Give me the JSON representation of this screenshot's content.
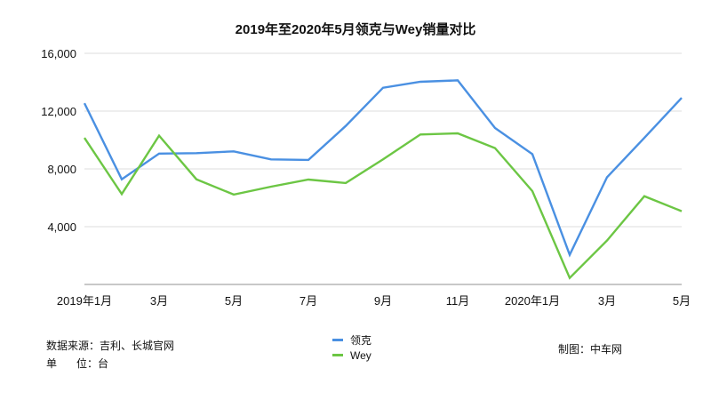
{
  "chart_data": {
    "type": "line",
    "title": "2019年至2020年5月领克与Wey销量对比",
    "xlabel": "",
    "ylabel": "",
    "ylim": [
      0,
      16000
    ],
    "yticks": [
      4000,
      8000,
      12000,
      16000
    ],
    "ytick_labels": [
      "4,000",
      "8,000",
      "12,000",
      "16,000"
    ],
    "grid": true,
    "legend_position": "bottom-center",
    "x": [
      "2019-01",
      "2019-02",
      "2019-03",
      "2019-04",
      "2019-05",
      "2019-06",
      "2019-07",
      "2019-08",
      "2019-09",
      "2019-10",
      "2019-11",
      "2019-12",
      "2020-01",
      "2020-02",
      "2020-03",
      "2020-04",
      "2020-05"
    ],
    "xtick_labels": [
      {
        "index": 0,
        "label": "2019年1月"
      },
      {
        "index": 2,
        "label": "3月"
      },
      {
        "index": 4,
        "label": "5月"
      },
      {
        "index": 6,
        "label": "7月"
      },
      {
        "index": 8,
        "label": "9月"
      },
      {
        "index": 10,
        "label": "11月"
      },
      {
        "index": 12,
        "label": "2020年1月"
      },
      {
        "index": 14,
        "label": "3月"
      },
      {
        "index": 16,
        "label": "5月"
      }
    ],
    "series": [
      {
        "name": "领克",
        "color": "#4a90e2",
        "values": [
          12550,
          7280,
          9060,
          9090,
          9210,
          8660,
          8620,
          10970,
          13620,
          14030,
          14130,
          10830,
          9020,
          2050,
          7420,
          10150,
          12920
        ]
      },
      {
        "name": "Wey",
        "color": "#6cc644",
        "values": [
          10150,
          6260,
          10300,
          7280,
          6220,
          6770,
          7260,
          7020,
          8660,
          10380,
          10460,
          9440,
          6460,
          450,
          3040,
          6110,
          5070
        ]
      }
    ]
  },
  "title": "2019年至2020年5月领克与Wey销量对比",
  "notes": {
    "source": "数据来源：吉利、长城官网",
    "unit_label_a": "单",
    "unit_label_b": "位：台",
    "credit": "制图：中车网"
  },
  "legend": [
    {
      "label": "领克",
      "color": "#4a90e2"
    },
    {
      "label": "Wey",
      "color": "#6cc644"
    }
  ]
}
